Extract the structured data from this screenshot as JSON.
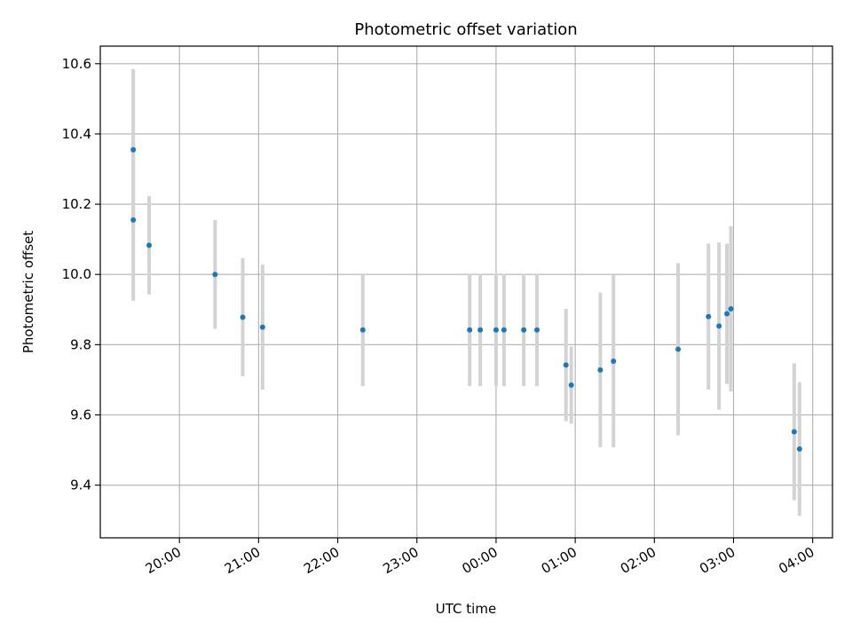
{
  "chart_data": {
    "type": "scatter",
    "title": "Photometric offset variation",
    "xlabel": "UTC time",
    "ylabel": "Photometric offset",
    "grid": true,
    "legend": "none",
    "x_axis": {
      "type": "time",
      "range": [
        "19:00",
        "04:15"
      ],
      "ticks": [
        "20:00",
        "21:00",
        "22:00",
        "23:00",
        "00:00",
        "01:00",
        "02:00",
        "03:00",
        "04:00"
      ]
    },
    "y_axis": {
      "range": [
        9.25,
        10.65
      ],
      "ticks": [
        9.4,
        9.6,
        9.8,
        10.0,
        10.2,
        10.4,
        10.6
      ]
    },
    "colors": {
      "point": "#1f77b4",
      "errorbar": "#d3d3d3",
      "grid": "#b0b0b0"
    },
    "series": [
      {
        "points": [
          {
            "x": "19:25",
            "y": 10.355,
            "err": 0.23
          },
          {
            "x": "19:25",
            "y": 10.155,
            "err": 0.23
          },
          {
            "x": "19:37",
            "y": 10.083,
            "err": 0.14
          },
          {
            "x": "20:27",
            "y": 10.0,
            "err": 0.155
          },
          {
            "x": "20:48",
            "y": 9.878,
            "err": 0.168
          },
          {
            "x": "21:03",
            "y": 9.85,
            "err": 0.178
          },
          {
            "x": "22:19",
            "y": 9.842,
            "err": 0.16
          },
          {
            "x": "23:40",
            "y": 9.842,
            "err": 0.16
          },
          {
            "x": "23:48",
            "y": 9.842,
            "err": 0.16
          },
          {
            "x": "00:00",
            "y": 9.842,
            "err": 0.16
          },
          {
            "x": "00:06",
            "y": 9.842,
            "err": 0.16
          },
          {
            "x": "00:21",
            "y": 9.842,
            "err": 0.16
          },
          {
            "x": "00:31",
            "y": 9.842,
            "err": 0.16
          },
          {
            "x": "00:53",
            "y": 9.742,
            "err": 0.16
          },
          {
            "x": "00:57",
            "y": 9.685,
            "err": 0.11
          },
          {
            "x": "01:19",
            "y": 9.728,
            "err": 0.22
          },
          {
            "x": "01:29",
            "y": 9.753,
            "err": 0.245
          },
          {
            "x": "02:18",
            "y": 9.787,
            "err": 0.245
          },
          {
            "x": "02:41",
            "y": 9.88,
            "err": 0.208
          },
          {
            "x": "02:49",
            "y": 9.853,
            "err": 0.238
          },
          {
            "x": "02:55",
            "y": 9.888,
            "err": 0.2
          },
          {
            "x": "02:58",
            "y": 9.902,
            "err": 0.235
          },
          {
            "x": "03:46",
            "y": 9.552,
            "err": 0.195
          },
          {
            "x": "03:50",
            "y": 9.503,
            "err": 0.19
          }
        ]
      }
    ]
  }
}
